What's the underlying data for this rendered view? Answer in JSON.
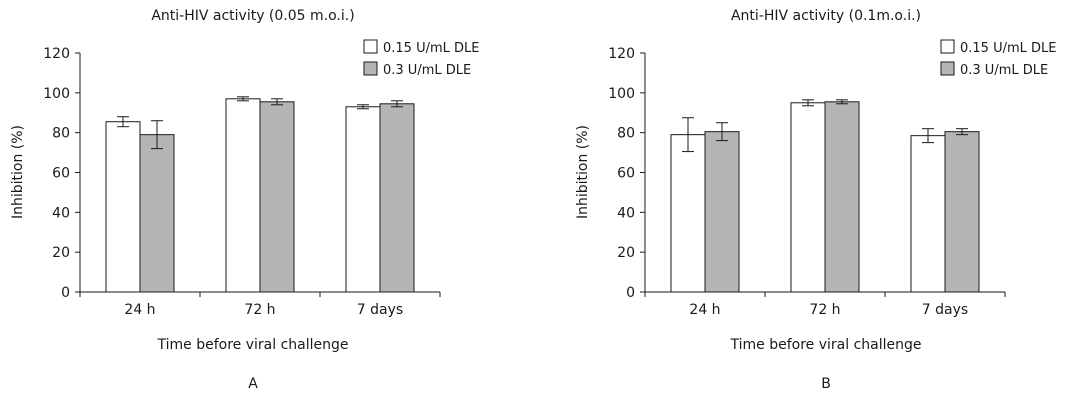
{
  "colors": {
    "bar_white": "#ffffff",
    "bar_gray": "#b5b5b5",
    "stroke": "#1a1a1a"
  },
  "chart_data": [
    {
      "type": "bar",
      "title": "Anti-HIV activity (0.05 m.o.i.)",
      "xlabel": "Time before viral challenge",
      "ylabel": "Inhibition (%)",
      "panel_label": "A",
      "categories": [
        "24 h",
        "72 h",
        "7 days"
      ],
      "ylim": [
        0,
        120
      ],
      "yticks": [
        0,
        20,
        40,
        60,
        80,
        100,
        120
      ],
      "grid": false,
      "legend_position": "top-right",
      "series": [
        {
          "name": "0.15 U/mL DLE",
          "color": "#ffffff",
          "values": [
            85.5,
            97,
            93
          ],
          "errors": [
            2.5,
            1,
            1
          ]
        },
        {
          "name": "0.3 U/mL DLE",
          "color": "#b5b5b5",
          "values": [
            79,
            95.5,
            94.5
          ],
          "errors": [
            7,
            1.5,
            1.5
          ]
        }
      ]
    },
    {
      "type": "bar",
      "title": "Anti-HIV activity (0.1m.o.i.)",
      "xlabel": "Time before viral challenge",
      "ylabel": "Inhibition (%)",
      "panel_label": "B",
      "categories": [
        "24 h",
        "72 h",
        "7 days"
      ],
      "ylim": [
        0,
        120
      ],
      "yticks": [
        0,
        20,
        40,
        60,
        80,
        100,
        120
      ],
      "grid": false,
      "legend_position": "top-right",
      "series": [
        {
          "name": "0.15 U/mL DLE",
          "color": "#ffffff",
          "values": [
            79,
            95,
            78.5
          ],
          "errors": [
            8.5,
            1.5,
            3.5
          ]
        },
        {
          "name": "0.3 U/mL DLE",
          "color": "#b5b5b5",
          "values": [
            80.5,
            95.5,
            80.5
          ],
          "errors": [
            4.5,
            1,
            1.5
          ]
        }
      ]
    }
  ]
}
